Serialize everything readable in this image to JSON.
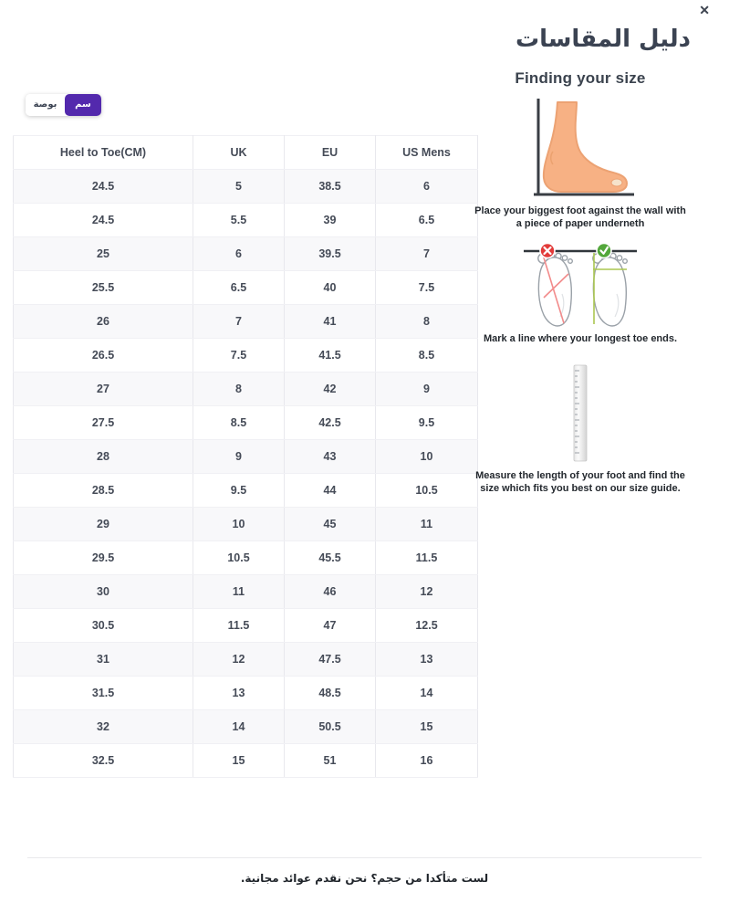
{
  "modal": {
    "title": "دليل المقاسات",
    "close_label": "✕"
  },
  "unit_toggle": {
    "cm_label": "سم",
    "inch_label": "بوصة",
    "selected": "cm",
    "active_color": "#5329ad"
  },
  "size_table": {
    "headers": [
      "Heel to Toe(CM)",
      "UK",
      "EU",
      "US Mens"
    ],
    "rows": [
      [
        "24.5",
        "5",
        "38.5",
        "6"
      ],
      [
        "24.5",
        "5.5",
        "39",
        "6.5"
      ],
      [
        "25",
        "6",
        "39.5",
        "7"
      ],
      [
        "25.5",
        "6.5",
        "40",
        "7.5"
      ],
      [
        "26",
        "7",
        "41",
        "8"
      ],
      [
        "26.5",
        "7.5",
        "41.5",
        "8.5"
      ],
      [
        "27",
        "8",
        "42",
        "9"
      ],
      [
        "27.5",
        "8.5",
        "42.5",
        "9.5"
      ],
      [
        "28",
        "9",
        "43",
        "10"
      ],
      [
        "28.5",
        "9.5",
        "44",
        "10.5"
      ],
      [
        "29",
        "10",
        "45",
        "11"
      ],
      [
        "29.5",
        "10.5",
        "45.5",
        "11.5"
      ],
      [
        "30",
        "11",
        "46",
        "12"
      ],
      [
        "30.5",
        "11.5",
        "47",
        "12.5"
      ],
      [
        "31",
        "12",
        "47.5",
        "13"
      ],
      [
        "31.5",
        "13",
        "48.5",
        "14"
      ],
      [
        "32",
        "14",
        "50.5",
        "15"
      ],
      [
        "32.5",
        "15",
        "51",
        "16"
      ]
    ]
  },
  "guide": {
    "heading": "Finding your size",
    "steps": [
      {
        "icon": "foot-against-wall-illustration",
        "caption": "Place your biggest foot against the wall with a piece of paper underneth"
      },
      {
        "icon": "correct-vs-wrong-marking-illustration",
        "caption": "Mark a line where your longest toe ends."
      },
      {
        "icon": "ruler-illustration",
        "caption": "Measure the length of your foot and find the size which fits you best on our size guide."
      }
    ]
  },
  "footer": {
    "note": "لست متأكدا من حجم؟ نحن نقدم عوائد مجانية."
  }
}
